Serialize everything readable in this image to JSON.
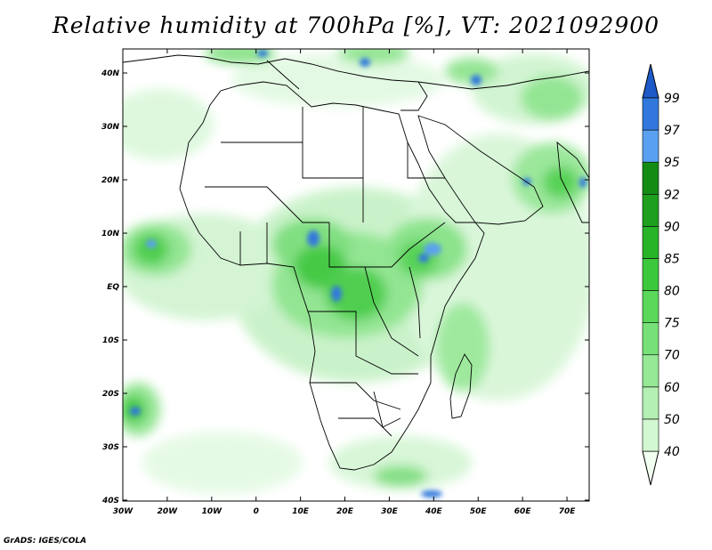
{
  "title": "Relative humidity at 700hPa [%], VT: 2021092900",
  "credit": "GrADS: IGES/COLA",
  "map": {
    "lon_range": [
      -30,
      75
    ],
    "lat_range": [
      -40,
      45
    ],
    "lon_ticks": [
      "30W",
      "20W",
      "10W",
      "0",
      "10E",
      "20E",
      "30E",
      "40E",
      "50E",
      "60E",
      "70E"
    ],
    "lat_ticks": [
      "40S",
      "30S",
      "20S",
      "10S",
      "EQ",
      "10N",
      "20N",
      "30N",
      "40N"
    ],
    "variable": "relative humidity",
    "level": "700hPa",
    "unit": "%"
  },
  "colorbar": {
    "levels": [
      "40",
      "50",
      "60",
      "70",
      "75",
      "80",
      "85",
      "90",
      "92",
      "95",
      "97",
      "99"
    ],
    "colors": [
      "#f0fff0",
      "#d2f8d2",
      "#b4f0b4",
      "#96e896",
      "#78e078",
      "#5ad85a",
      "#3cc83c",
      "#28b428",
      "#1ea01e",
      "#148c14",
      "#5aa0f0",
      "#3278dc",
      "#1e5ac8"
    ],
    "extend": "both"
  }
}
